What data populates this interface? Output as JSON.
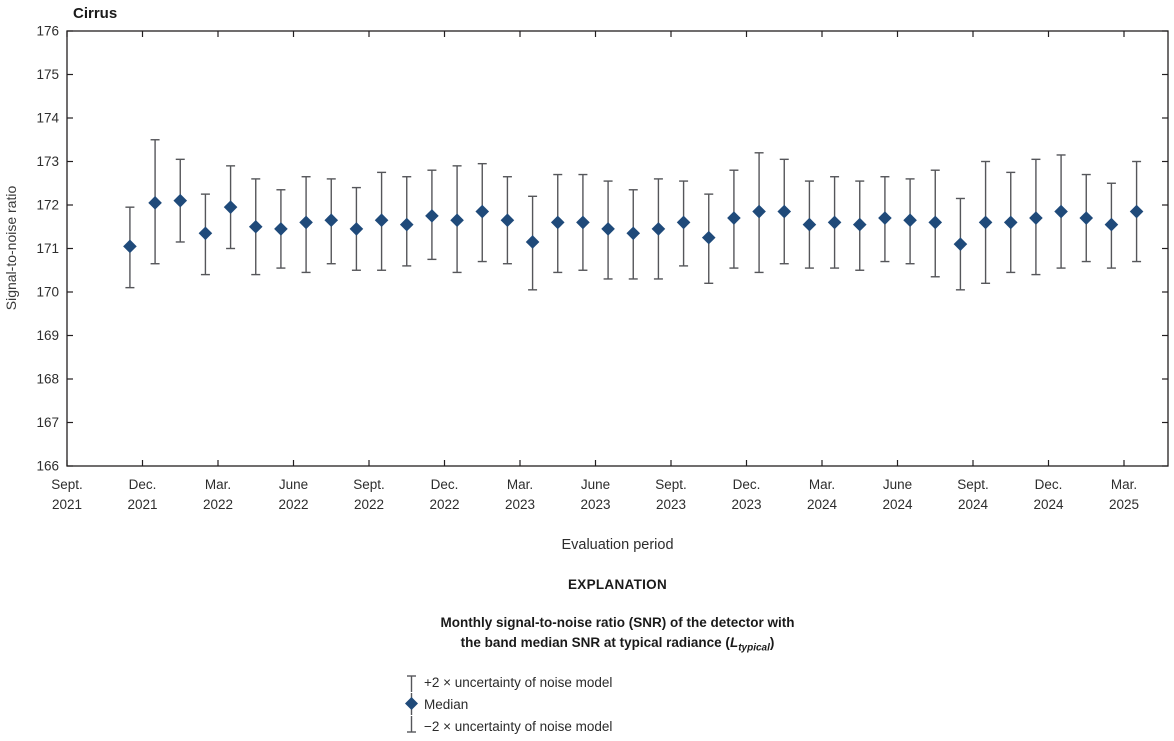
{
  "chart": {
    "title": "Cirrus",
    "xlabel": "Evaluation period",
    "ylabel": "Signal-to-noise ratio"
  },
  "explanation": {
    "heading": "EXPLANATION",
    "caption_line1": "Monthly signal-to-noise ratio (SNR) of the detector with",
    "caption_line2_pre": "the band median SNR at typical radiance (",
    "caption_line2_var": "L",
    "caption_line2_sub": "typical",
    "caption_line2_post": ")",
    "items": [
      {
        "symbol": "errorbar-top-cap-icon",
        "label": "+2 × uncertainty of noise model"
      },
      {
        "symbol": "median-diamond-icon",
        "label": "Median"
      },
      {
        "symbol": "errorbar-bottom-cap-icon",
        "label": "−2 × uncertainty of noise model"
      }
    ]
  },
  "colors": {
    "diamond": "#1f4a7a",
    "whisker": "#55565a",
    "axis": "#231f20",
    "tick_text": "#2d2d2d",
    "ylabel_text": "#3a3a3a"
  },
  "chart_data": {
    "type": "scatter",
    "title": "Cirrus",
    "xlabel": "Evaluation period",
    "ylabel": "Signal-to-noise ratio",
    "ylim": [
      166,
      176
    ],
    "y_ticks": [
      166,
      167,
      168,
      169,
      170,
      171,
      172,
      173,
      174,
      175,
      176
    ],
    "x_tick_labels": [
      {
        "month": "Sept.",
        "year": "2021"
      },
      {
        "month": "Dec.",
        "year": "2021"
      },
      {
        "month": "Mar.",
        "year": "2022"
      },
      {
        "month": "June",
        "year": "2022"
      },
      {
        "month": "Sept.",
        "year": "2022"
      },
      {
        "month": "Dec.",
        "year": "2022"
      },
      {
        "month": "Mar.",
        "year": "2023"
      },
      {
        "month": "June",
        "year": "2023"
      },
      {
        "month": "Sept.",
        "year": "2023"
      },
      {
        "month": "Dec.",
        "year": "2023"
      },
      {
        "month": "Mar.",
        "year": "2024"
      },
      {
        "month": "June",
        "year": "2024"
      },
      {
        "month": "Sept.",
        "year": "2024"
      },
      {
        "month": "Dec.",
        "year": "2024"
      },
      {
        "month": "Mar.",
        "year": "2025"
      }
    ],
    "legend_position": "below",
    "grid": false,
    "series": [
      {
        "name": "Median with ±2 × uncertainty of noise model",
        "points": [
          {
            "period": "Nov. 2021",
            "median": 171.05,
            "upper": 171.95,
            "lower": 170.1
          },
          {
            "period": "Dec. 2021",
            "median": 172.05,
            "upper": 173.5,
            "lower": 170.65
          },
          {
            "period": "Jan. 2022",
            "median": 172.1,
            "upper": 173.05,
            "lower": 171.15
          },
          {
            "period": "Feb. 2022",
            "median": 171.35,
            "upper": 172.25,
            "lower": 170.4
          },
          {
            "period": "Mar. 2022",
            "median": 171.95,
            "upper": 172.9,
            "lower": 171.0
          },
          {
            "period": "Apr. 2022",
            "median": 171.5,
            "upper": 172.6,
            "lower": 170.4
          },
          {
            "period": "May 2022",
            "median": 171.45,
            "upper": 172.35,
            "lower": 170.55
          },
          {
            "period": "June 2022",
            "median": 171.6,
            "upper": 172.65,
            "lower": 170.45
          },
          {
            "period": "July 2022",
            "median": 171.65,
            "upper": 172.6,
            "lower": 170.65
          },
          {
            "period": "Aug. 2022",
            "median": 171.45,
            "upper": 172.4,
            "lower": 170.5
          },
          {
            "period": "Sept. 2022",
            "median": 171.65,
            "upper": 172.75,
            "lower": 170.5
          },
          {
            "period": "Oct. 2022",
            "median": 171.55,
            "upper": 172.65,
            "lower": 170.6
          },
          {
            "period": "Nov. 2022",
            "median": 171.75,
            "upper": 172.8,
            "lower": 170.75
          },
          {
            "period": "Dec. 2022",
            "median": 171.65,
            "upper": 172.9,
            "lower": 170.45
          },
          {
            "period": "Jan. 2023",
            "median": 171.85,
            "upper": 172.95,
            "lower": 170.7
          },
          {
            "period": "Feb. 2023",
            "median": 171.65,
            "upper": 172.65,
            "lower": 170.65
          },
          {
            "period": "Mar. 2023",
            "median": 171.15,
            "upper": 172.2,
            "lower": 170.05
          },
          {
            "period": "Apr. 2023",
            "median": 171.6,
            "upper": 172.7,
            "lower": 170.45
          },
          {
            "period": "May 2023",
            "median": 171.6,
            "upper": 172.7,
            "lower": 170.5
          },
          {
            "period": "June 2023",
            "median": 171.45,
            "upper": 172.55,
            "lower": 170.3
          },
          {
            "period": "July 2023",
            "median": 171.35,
            "upper": 172.35,
            "lower": 170.3
          },
          {
            "period": "Aug. 2023",
            "median": 171.45,
            "upper": 172.6,
            "lower": 170.3
          },
          {
            "period": "Sept. 2023",
            "median": 171.6,
            "upper": 172.55,
            "lower": 170.6
          },
          {
            "period": "Oct. 2023",
            "median": 171.25,
            "upper": 172.25,
            "lower": 170.2
          },
          {
            "period": "Nov. 2023",
            "median": 171.7,
            "upper": 172.8,
            "lower": 170.55
          },
          {
            "period": "Dec. 2023",
            "median": 171.85,
            "upper": 173.2,
            "lower": 170.45
          },
          {
            "period": "Jan. 2024",
            "median": 171.85,
            "upper": 173.05,
            "lower": 170.65
          },
          {
            "period": "Feb. 2024",
            "median": 171.55,
            "upper": 172.55,
            "lower": 170.55
          },
          {
            "period": "Mar. 2024",
            "median": 171.6,
            "upper": 172.65,
            "lower": 170.55
          },
          {
            "period": "Apr. 2024",
            "median": 171.55,
            "upper": 172.55,
            "lower": 170.5
          },
          {
            "period": "May 2024",
            "median": 171.7,
            "upper": 172.65,
            "lower": 170.7
          },
          {
            "period": "June 2024",
            "median": 171.65,
            "upper": 172.6,
            "lower": 170.65
          },
          {
            "period": "July 2024",
            "median": 171.6,
            "upper": 172.8,
            "lower": 170.35
          },
          {
            "period": "Aug. 2024",
            "median": 171.1,
            "upper": 172.15,
            "lower": 170.05
          },
          {
            "period": "Sept. 2024",
            "median": 171.6,
            "upper": 173.0,
            "lower": 170.2
          },
          {
            "period": "Oct. 2024",
            "median": 171.6,
            "upper": 172.75,
            "lower": 170.45
          },
          {
            "period": "Nov. 2024",
            "median": 171.7,
            "upper": 173.05,
            "lower": 170.4
          },
          {
            "period": "Dec. 2024",
            "median": 171.85,
            "upper": 173.15,
            "lower": 170.55
          },
          {
            "period": "Jan. 2025",
            "median": 171.7,
            "upper": 172.7,
            "lower": 170.7
          },
          {
            "period": "Feb. 2025",
            "median": 171.55,
            "upper": 172.5,
            "lower": 170.55
          },
          {
            "period": "Mar. 2025",
            "median": 171.85,
            "upper": 173.0,
            "lower": 170.7
          }
        ]
      }
    ]
  }
}
